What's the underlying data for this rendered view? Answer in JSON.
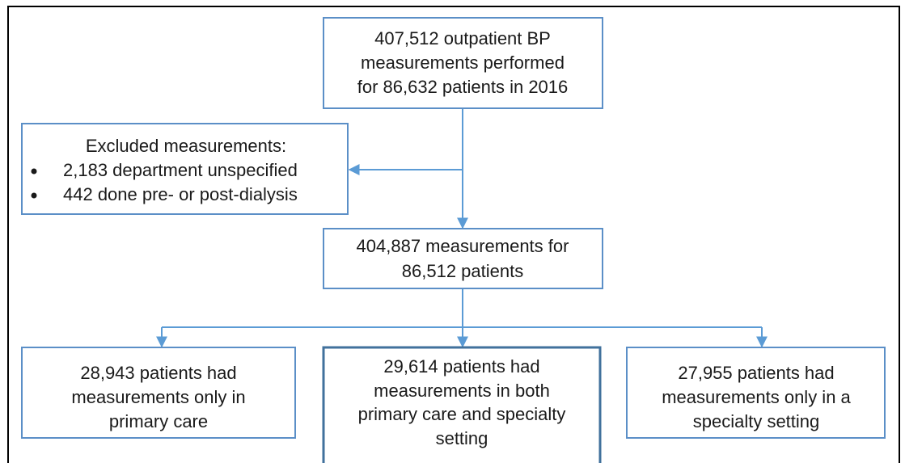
{
  "nodes": [
    {
      "lines": [
        "407,512 outpatient BP",
        "measurements performed",
        "for 86,632 patients in 2016"
      ]
    },
    {
      "title": "Excluded measurements:",
      "items": [
        "2,183 department unspecified",
        "442 done pre- or post-dialysis"
      ]
    },
    {
      "lines": [
        "404,887 measurements for",
        "86,512 patients"
      ]
    },
    {
      "lines": [
        "28,943 patients had",
        "measurements only in",
        "primary care"
      ]
    },
    {
      "lines": [
        "29,614 patients had",
        "measurements in both",
        "primary care and specialty",
        "setting"
      ]
    },
    {
      "lines": [
        "27,955 patients had",
        "measurements only in a",
        "specialty setting"
      ]
    }
  ]
}
